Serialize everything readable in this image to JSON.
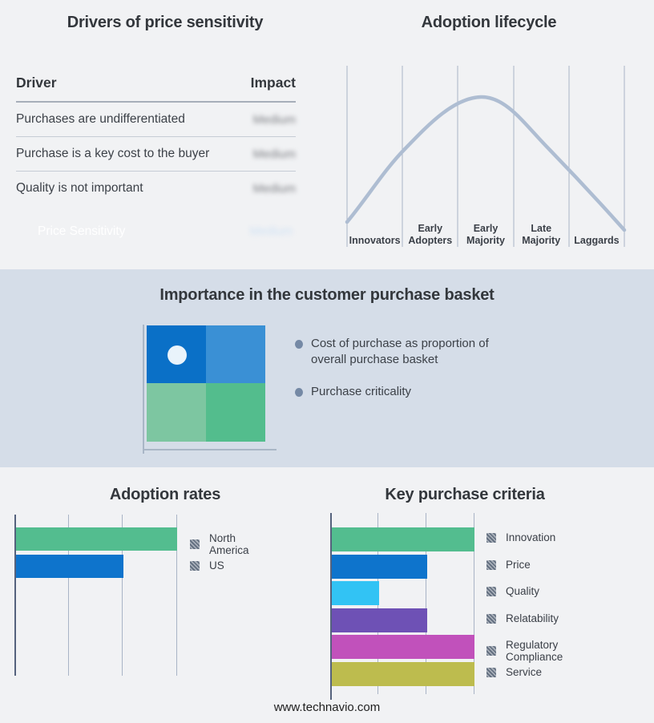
{
  "drivers_panel": {
    "title": "Drivers of price sensitivity",
    "columns": {
      "driver": "Driver",
      "impact": "Impact"
    },
    "rows": [
      {
        "driver": "Purchases are undifferentiated",
        "impact": "Medium"
      },
      {
        "driver": "Purchase is a key cost to the buyer",
        "impact": "Medium"
      },
      {
        "driver": "Quality is not important",
        "impact": "Medium"
      }
    ],
    "summary": {
      "label": "Price Sensitivity",
      "impact": "Medium"
    },
    "note": "impact values appear blurred in source image"
  },
  "basket_panel": {
    "title": "Importance in the customer purchase basket",
    "bullets": [
      "Cost of purchase as proportion of overall purchase basket",
      "Purchase criticality"
    ],
    "quadrant_colors": [
      "#0a70c7",
      "#3a90d5",
      "#7dc6a1",
      "#53bd8d"
    ]
  },
  "footer": {
    "text": "www.technavio.com"
  },
  "colors": {
    "background": "#f1f2f4",
    "band": "#d5dde8",
    "accent_blue": "#0d70c6",
    "curve": "#aebdd2",
    "gridline": "#a9b4c6",
    "axis_dark": "#55627d"
  },
  "chart_data": [
    {
      "id": "adoption-lifecycle",
      "type": "line",
      "title": "Adoption lifecycle",
      "categories": [
        "Innovators",
        "Early Adopters",
        "Early Majority",
        "Late Majority",
        "Laggards"
      ],
      "description": "Bell-shaped adoption curve rising through Innovators and Early Adopters, peaking over Early Majority, declining through Late Majority and Laggards",
      "curve_points_pct_x_y": [
        [
          0,
          10
        ],
        [
          20,
          52
        ],
        [
          40,
          79
        ],
        [
          48,
          84
        ],
        [
          60,
          73
        ],
        [
          80,
          38
        ],
        [
          100,
          5
        ]
      ],
      "grid": "vertical-only",
      "line_color": "#aebdd2"
    },
    {
      "id": "adoption-rates",
      "type": "bar",
      "orientation": "horizontal",
      "title": "Adoption rates",
      "categories": [
        "North America",
        "US"
      ],
      "values": [
        3,
        2
      ],
      "xlim": [
        0,
        3
      ],
      "grid": true,
      "legend_position": "right",
      "bar_colors": [
        "#53bd8f",
        "#0e74cc"
      ]
    },
    {
      "id": "key-purchase-criteria",
      "type": "bar",
      "orientation": "horizontal",
      "title": "Key purchase criteria",
      "categories": [
        "Innovation",
        "Price",
        "Quality",
        "Relatability",
        "Regulatory Compliance",
        "Service"
      ],
      "values": [
        3,
        2,
        1,
        2,
        3,
        3
      ],
      "xlim": [
        0,
        3
      ],
      "grid": true,
      "legend_position": "right",
      "bar_colors": [
        "#53bd8f",
        "#0e74cc",
        "#32c3f4",
        "#6e51b5",
        "#c151bb",
        "#bdbc4e"
      ]
    }
  ]
}
